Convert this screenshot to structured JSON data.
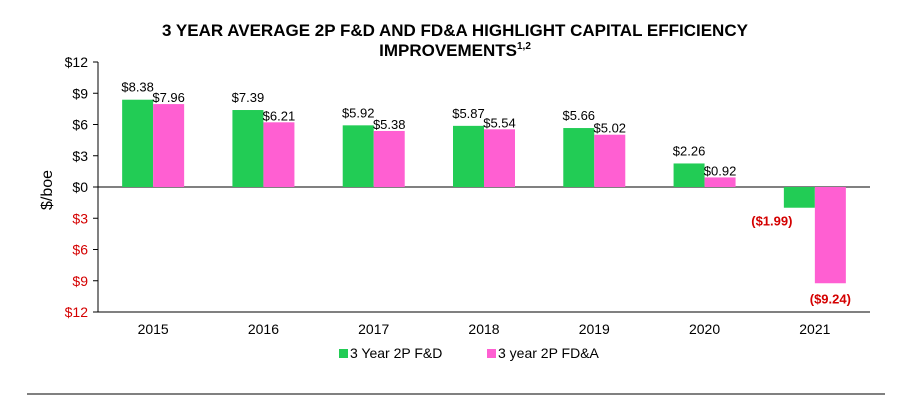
{
  "chart_data": {
    "type": "bar",
    "title": "3 YEAR AVERAGE 2P F&D AND FD&A HIGHLIGHT CAPITAL EFFICIENCY",
    "title_line2": "IMPROVEMENTS",
    "title_superscript": "1,2",
    "ylabel": "$/boe",
    "xlabel": "",
    "ylim": [
      -12,
      12
    ],
    "yticks": [
      12,
      9,
      6,
      3,
      0,
      -3,
      -6,
      -9,
      -12
    ],
    "ytick_labels": [
      "$12",
      "$9",
      "$6",
      "$3",
      "$0",
      "$3",
      "$6",
      "$9",
      "$12"
    ],
    "categories": [
      "2015",
      "2016",
      "2017",
      "2018",
      "2019",
      "2020",
      "2021"
    ],
    "series": [
      {
        "name": "3 Year 2P F&D",
        "color": "#22cc55",
        "values": [
          8.38,
          7.39,
          5.92,
          5.87,
          5.66,
          2.26,
          -1.99
        ],
        "labels": [
          "$8.38",
          "$7.39",
          "$5.92",
          "$5.87",
          "$5.66",
          "$2.26",
          "($1.99)"
        ]
      },
      {
        "name": "3 year 2P FD&A",
        "color": "#ff5fd2",
        "values": [
          7.96,
          6.21,
          5.38,
          5.54,
          5.02,
          0.92,
          -9.24
        ],
        "labels": [
          "$7.96",
          "$6.21",
          "$5.38",
          "$5.54",
          "$5.02",
          "$0.92",
          "($9.24)"
        ]
      }
    ],
    "legend_position": "bottom-center",
    "negative_color": "#d40000"
  }
}
